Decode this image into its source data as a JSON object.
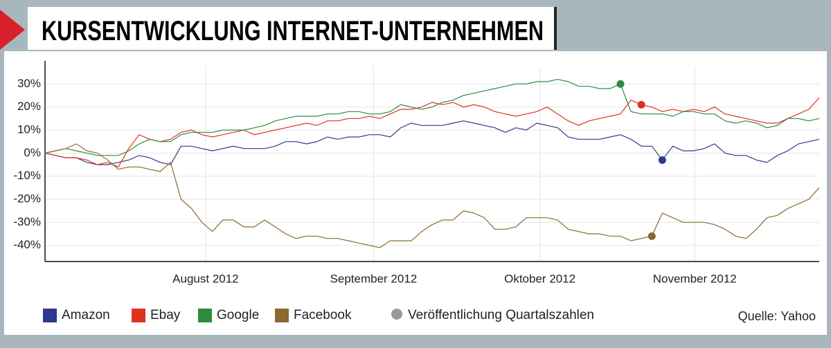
{
  "chart_data": {
    "type": "line",
    "title": "KURSENTWICKLUNG INTERNET-UNTERNEHMEN",
    "source": "Quelle: Yahoo",
    "earnings_label": "Veröffentlichung Quartalszahlen",
    "earnings_color": "#9a9a9a",
    "grid": true,
    "xlim": [
      0,
      74
    ],
    "xticks": [
      {
        "value": 15.35,
        "label": "August 2012"
      },
      {
        "value": 31.4,
        "label": "September 2012"
      },
      {
        "value": 47.3,
        "label": "Oktober 2012"
      },
      {
        "value": 62.1,
        "label": "November 2012"
      }
    ],
    "ylim": [
      -47,
      40
    ],
    "yticks": [
      {
        "value": 30,
        "label": "30%"
      },
      {
        "value": 20,
        "label": "20%"
      },
      {
        "value": 10,
        "label": "10%"
      },
      {
        "value": 0,
        "label": "0%"
      },
      {
        "value": -10,
        "label": "-10%"
      },
      {
        "value": -20,
        "label": "-20%"
      },
      {
        "value": -30,
        "label": "-30%"
      },
      {
        "value": -40,
        "label": "-40%"
      }
    ],
    "series": [
      {
        "name": "Amazon",
        "color": "#2e3a8c",
        "earnings_index": 59,
        "values": [
          0,
          -1,
          -2,
          -2,
          -4,
          -5,
          -5,
          -4,
          -3,
          -1,
          -2,
          -4,
          -5,
          3,
          3,
          2,
          1,
          2,
          3,
          2,
          2,
          2,
          3,
          5,
          5,
          4,
          5,
          7,
          6,
          7,
          7,
          8,
          8,
          7,
          11,
          13,
          12,
          12,
          12,
          13,
          14,
          13,
          12,
          11,
          9,
          11,
          10,
          13,
          12,
          11,
          7,
          6,
          6,
          6,
          7,
          8,
          6,
          3,
          3,
          -3,
          3,
          1,
          1,
          2,
          4,
          0,
          -1,
          -1,
          -3,
          -4,
          -1,
          1,
          4,
          5,
          6
        ]
      },
      {
        "name": "Ebay",
        "color": "#e0301e",
        "earnings_index": 57,
        "values": [
          0,
          -1,
          -2,
          -2,
          -3,
          -5,
          -4,
          -6,
          2,
          8,
          6,
          5,
          6,
          9,
          10,
          8,
          7,
          8,
          9,
          10,
          8,
          9,
          10,
          11,
          12,
          13,
          12,
          14,
          14,
          15,
          15,
          16,
          15,
          17,
          19,
          19,
          20,
          22,
          21,
          22,
          20,
          21,
          20,
          18,
          17,
          16,
          17,
          18,
          20,
          17,
          14,
          12,
          14,
          15,
          16,
          17,
          23,
          21,
          20,
          18,
          19,
          18,
          19,
          18,
          20,
          17,
          16,
          15,
          14,
          13,
          13,
          15,
          17,
          19,
          24
        ]
      },
      {
        "name": "Google",
        "color": "#2e8b3e",
        "earnings_index": 55,
        "values": [
          0,
          1,
          2,
          1,
          0,
          -1,
          -1,
          -1,
          1,
          4,
          6,
          5,
          5,
          8,
          9,
          9,
          9,
          10,
          10,
          10,
          11,
          12,
          14,
          15,
          16,
          16,
          16,
          17,
          17,
          18,
          18,
          17,
          17,
          18,
          21,
          20,
          19,
          20,
          22,
          23,
          25,
          26,
          27,
          28,
          29,
          30,
          30,
          31,
          31,
          32,
          31,
          29,
          29,
          28,
          28,
          30,
          18,
          17,
          17,
          17,
          16,
          18,
          18,
          17,
          17,
          14,
          13,
          14,
          13,
          11,
          12,
          15,
          15,
          14,
          15
        ]
      },
      {
        "name": "Facebook",
        "color": "#8b6a30",
        "earnings_index": 58,
        "values": [
          0,
          1,
          2,
          4,
          1,
          0,
          -3,
          -7,
          -6,
          -6,
          -7,
          -8,
          -4,
          -20,
          -24,
          -30,
          -34,
          -29,
          -29,
          -32,
          -32,
          -29,
          -32,
          -35,
          -37,
          -36,
          -36,
          -37,
          -37,
          -38,
          -39,
          -40,
          -41,
          -38,
          -38,
          -38,
          -34,
          -31,
          -29,
          -29,
          -25,
          -26,
          -28,
          -33,
          -33,
          -32,
          -28,
          -28,
          -28,
          -29,
          -33,
          -34,
          -35,
          -35,
          -36,
          -36,
          -38,
          -37,
          -36,
          -26,
          -28,
          -30,
          -30,
          -30,
          -31,
          -33,
          -36,
          -37,
          -33,
          -28,
          -27,
          -24,
          -22,
          -20,
          -15
        ]
      }
    ]
  }
}
